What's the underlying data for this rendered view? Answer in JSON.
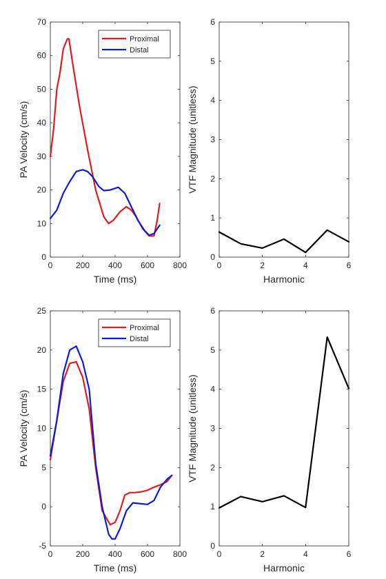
{
  "chart_data": [
    {
      "type": "line",
      "xlabel": "Time (ms)",
      "ylabel": "PA Velocity (cm/s)",
      "xlim": [
        0,
        800
      ],
      "ylim": [
        0,
        70
      ],
      "xticks": [
        0,
        200,
        400,
        600,
        800
      ],
      "yticks": [
        0,
        10,
        20,
        30,
        40,
        50,
        60,
        70
      ],
      "grid": false,
      "legend_position": "top-right",
      "series": [
        {
          "name": "Proximal",
          "color": "#e8191d",
          "x": [
            0,
            20,
            40,
            60,
            80,
            105,
            115,
            140,
            180,
            230,
            280,
            330,
            360,
            390,
            430,
            470,
            500,
            530,
            570,
            610,
            640,
            660,
            675
          ],
          "y": [
            30,
            38,
            50,
            55,
            62,
            65,
            65,
            57,
            45,
            32,
            20,
            12,
            10,
            11,
            13.5,
            15,
            14,
            12,
            8.5,
            6.3,
            6.3,
            11,
            16
          ]
        },
        {
          "name": "Distal",
          "color": "#0b1bd6",
          "x": [
            0,
            40,
            80,
            120,
            160,
            200,
            230,
            260,
            300,
            330,
            370,
            420,
            460,
            500,
            540,
            580,
            610,
            640,
            675
          ],
          "y": [
            11.5,
            14,
            19,
            22.5,
            25.5,
            26,
            25.5,
            24,
            21,
            19.8,
            20,
            20.8,
            19,
            15,
            11,
            8,
            6.5,
            7,
            9.5
          ]
        }
      ]
    },
    {
      "type": "line",
      "xlabel": "Harmonic",
      "ylabel": "VTF Magnitude (unitless)",
      "xlim": [
        0,
        6
      ],
      "ylim": [
        0,
        6
      ],
      "xticks": [
        0,
        2,
        4,
        6
      ],
      "yticks": [
        0,
        1,
        2,
        3,
        4,
        5,
        6
      ],
      "grid": false,
      "series": [
        {
          "color": "#000000",
          "x": [
            0,
            1,
            2,
            3,
            4,
            5,
            6
          ],
          "y": [
            0.64,
            0.34,
            0.23,
            0.46,
            0.12,
            0.69,
            0.39
          ]
        }
      ]
    },
    {
      "type": "line",
      "xlabel": "Time (ms)",
      "ylabel": "PA Velocity (cm/s)",
      "xlim": [
        0,
        800
      ],
      "ylim": [
        -5,
        25
      ],
      "xticks": [
        0,
        200,
        400,
        600,
        800
      ],
      "yticks": [
        -5,
        0,
        5,
        10,
        15,
        20,
        25
      ],
      "grid": false,
      "legend_position": "top-right",
      "series": [
        {
          "name": "Proximal",
          "color": "#e8191d",
          "x": [
            0,
            40,
            80,
            120,
            160,
            200,
            240,
            280,
            320,
            370,
            400,
            430,
            460,
            490,
            520,
            560,
            600,
            640,
            680,
            720,
            750
          ],
          "y": [
            6,
            11,
            16,
            18.3,
            18.5,
            16.5,
            12.5,
            5,
            -0.5,
            -2.3,
            -2,
            -0.5,
            1.5,
            1.8,
            1.8,
            1.9,
            2.1,
            2.5,
            2.8,
            3.2,
            4
          ]
        },
        {
          "name": "Distal",
          "color": "#0b1bd6",
          "x": [
            0,
            40,
            80,
            120,
            160,
            200,
            240,
            280,
            320,
            360,
            380,
            400,
            430,
            470,
            510,
            550,
            600,
            640,
            680,
            720,
            750
          ],
          "y": [
            6.5,
            11,
            17,
            20,
            20.5,
            18.5,
            15,
            5.5,
            0,
            -3.5,
            -4.1,
            -4.1,
            -2.8,
            -0.5,
            0.5,
            0.4,
            0.3,
            0.8,
            2.5,
            3.5,
            4
          ]
        }
      ]
    },
    {
      "type": "line",
      "xlabel": "Harmonic",
      "ylabel": "VTF Magnitude (unitless)",
      "xlim": [
        0,
        6
      ],
      "ylim": [
        0,
        6
      ],
      "xticks": [
        0,
        2,
        4,
        6
      ],
      "yticks": [
        0,
        1,
        2,
        3,
        4,
        5,
        6
      ],
      "grid": false,
      "series": [
        {
          "color": "#000000",
          "x": [
            0,
            1,
            2,
            3,
            4,
            5,
            6
          ],
          "y": [
            0.97,
            1.26,
            1.13,
            1.28,
            0.98,
            5.33,
            4.02
          ]
        }
      ]
    }
  ]
}
